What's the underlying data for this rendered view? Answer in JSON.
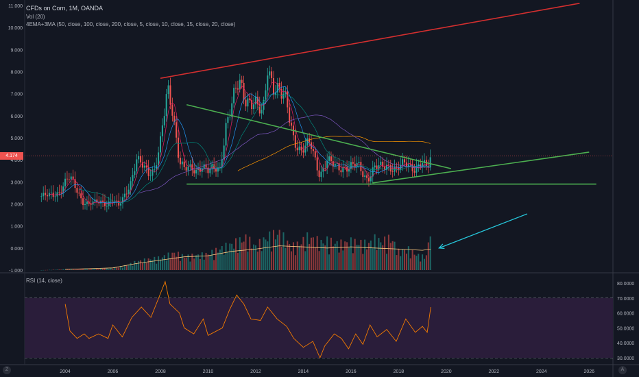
{
  "legend": {
    "symbol_title": "CFDs on Corn, 1M, OANDA",
    "volume_label": "Vol (20)",
    "ma_label": "4EMA+3MA (50, close, 100, close, 200, close, 5, close, 10, close, 15, close, 20, close)",
    "rsi_label": "RSI (14, close)"
  },
  "current_price": "4.174",
  "corner_buttons": {
    "left": "Z",
    "right": "A"
  },
  "price_axis_labels": [
    "11.000",
    "10.000",
    "9.000",
    "8.000",
    "7.000",
    "6.000",
    "5.000",
    "4.000",
    "3.000",
    "2.000",
    "1.000",
    "0.000",
    "-1.000"
  ],
  "rsi_axis_labels": [
    "80.0000",
    "70.0000",
    "60.0000",
    "50.0000",
    "40.0000",
    "30.0000"
  ],
  "time_axis_labels": [
    "2004",
    "2006",
    "2008",
    "2010",
    "2012",
    "2014",
    "2016",
    "2018",
    "2020",
    "2022",
    "2024",
    "2026"
  ],
  "colors": {
    "background": "#131722",
    "up_candle": "#26a69a",
    "down_candle": "#ef5350",
    "trendline_red": "#d32f2f",
    "trendline_green": "#4caf50",
    "annotation_arrow": "#26c6da",
    "rsi_line": "#f57c00",
    "rsi_band": "#2a1d3a"
  },
  "chart_data": {
    "type": "candlestick",
    "symbol": "CFDs on Corn",
    "interval": "1M",
    "ylim": [
      -1,
      11
    ],
    "xlim": [
      2002.3,
      2027.0
    ],
    "closes": [
      [
        2003.0,
        2.35
      ],
      [
        2003.5,
        2.4
      ],
      [
        2003.75,
        2.55
      ],
      [
        2004.0,
        3.0
      ],
      [
        2004.2,
        3.2
      ],
      [
        2004.5,
        2.6
      ],
      [
        2004.75,
        2.1
      ],
      [
        2005.0,
        2.0
      ],
      [
        2005.5,
        2.1
      ],
      [
        2005.75,
        2.0
      ],
      [
        2006.0,
        2.2
      ],
      [
        2006.25,
        1.9
      ],
      [
        2006.5,
        2.4
      ],
      [
        2006.75,
        3.0
      ],
      [
        2007.0,
        4.0
      ],
      [
        2007.25,
        3.7
      ],
      [
        2007.5,
        3.4
      ],
      [
        2007.75,
        3.6
      ],
      [
        2008.0,
        4.8
      ],
      [
        2008.3,
        7.1
      ],
      [
        2008.5,
        6.3
      ],
      [
        2008.8,
        4.0
      ],
      [
        2009.0,
        3.6
      ],
      [
        2009.5,
        3.5
      ],
      [
        2009.75,
        3.8
      ],
      [
        2010.0,
        3.5
      ],
      [
        2010.5,
        3.6
      ],
      [
        2010.75,
        5.6
      ],
      [
        2011.0,
        6.5
      ],
      [
        2011.3,
        7.5
      ],
      [
        2011.6,
        6.8
      ],
      [
        2011.9,
        6.6
      ],
      [
        2012.3,
        6.0
      ],
      [
        2012.5,
        8.3
      ],
      [
        2012.75,
        7.4
      ],
      [
        2013.0,
        7.0
      ],
      [
        2013.3,
        6.6
      ],
      [
        2013.6,
        5.0
      ],
      [
        2013.9,
        4.3
      ],
      [
        2014.3,
        4.8
      ],
      [
        2014.7,
        3.3
      ],
      [
        2015.0,
        3.9
      ],
      [
        2015.5,
        3.7
      ],
      [
        2015.9,
        3.6
      ],
      [
        2016.3,
        3.8
      ],
      [
        2016.7,
        3.1
      ],
      [
        2017.0,
        3.6
      ],
      [
        2017.5,
        3.8
      ],
      [
        2017.9,
        3.5
      ],
      [
        2018.3,
        3.9
      ],
      [
        2018.7,
        3.6
      ],
      [
        2019.0,
        3.8
      ],
      [
        2019.2,
        3.6
      ],
      [
        2019.35,
        4.17
      ]
    ],
    "volume": [
      [
        2003.0,
        0.0
      ],
      [
        2004.0,
        0.03
      ],
      [
        2005.0,
        0.05
      ],
      [
        2006.0,
        0.08
      ],
      [
        2006.6,
        0.2
      ],
      [
        2007.0,
        0.35
      ],
      [
        2007.6,
        0.45
      ],
      [
        2008.0,
        0.5
      ],
      [
        2008.6,
        0.7
      ],
      [
        2009.0,
        0.55
      ],
      [
        2009.6,
        0.6
      ],
      [
        2010.0,
        0.65
      ],
      [
        2010.6,
        0.9
      ],
      [
        2011.0,
        1.05
      ],
      [
        2011.6,
        1.3
      ],
      [
        2012.0,
        0.95
      ],
      [
        2012.5,
        1.35
      ],
      [
        2013.0,
        1.5
      ],
      [
        2013.5,
        0.95
      ],
      [
        2013.8,
        1.05
      ],
      [
        2014.2,
        1.35
      ],
      [
        2014.8,
        1.1
      ],
      [
        2015.0,
        1.2
      ],
      [
        2015.5,
        1.05
      ],
      [
        2016.0,
        1.15
      ],
      [
        2016.4,
        1.1
      ],
      [
        2016.7,
        1.05
      ],
      [
        2017.0,
        1.25
      ],
      [
        2017.3,
        1.15
      ],
      [
        2017.7,
        1.3
      ],
      [
        2018.0,
        0.75
      ],
      [
        2018.4,
        0.85
      ],
      [
        2018.8,
        0.6
      ],
      [
        2019.0,
        0.55
      ],
      [
        2019.2,
        0.6
      ],
      [
        2019.35,
        2.0
      ]
    ],
    "volume_ma": [
      [
        2004.0,
        0.03
      ],
      [
        2006.0,
        0.1
      ],
      [
        2007.0,
        0.3
      ],
      [
        2008.0,
        0.45
      ],
      [
        2009.0,
        0.6
      ],
      [
        2010.0,
        0.65
      ],
      [
        2011.0,
        0.85
      ],
      [
        2012.0,
        0.95
      ],
      [
        2013.0,
        1.1
      ],
      [
        2014.0,
        1.05
      ],
      [
        2015.0,
        1.0
      ],
      [
        2016.0,
        1.05
      ],
      [
        2017.0,
        1.0
      ],
      [
        2018.0,
        0.95
      ],
      [
        2019.0,
        0.9
      ],
      [
        2019.35,
        0.95
      ]
    ],
    "rsi": [
      [
        2004.0,
        66
      ],
      [
        2004.2,
        48
      ],
      [
        2004.5,
        43
      ],
      [
        2004.8,
        46
      ],
      [
        2005.0,
        43
      ],
      [
        2005.4,
        46
      ],
      [
        2005.8,
        43
      ],
      [
        2006.0,
        52
      ],
      [
        2006.4,
        44
      ],
      [
        2006.8,
        57
      ],
      [
        2007.2,
        64
      ],
      [
        2007.6,
        57
      ],
      [
        2008.0,
        73
      ],
      [
        2008.2,
        81
      ],
      [
        2008.4,
        66
      ],
      [
        2008.8,
        60
      ],
      [
        2009.0,
        50
      ],
      [
        2009.4,
        46
      ],
      [
        2009.8,
        56
      ],
      [
        2010.0,
        45
      ],
      [
        2010.6,
        50
      ],
      [
        2010.9,
        62
      ],
      [
        2011.2,
        72
      ],
      [
        2011.5,
        66
      ],
      [
        2011.8,
        56
      ],
      [
        2012.2,
        55
      ],
      [
        2012.5,
        64
      ],
      [
        2012.9,
        56
      ],
      [
        2013.3,
        51
      ],
      [
        2013.6,
        43
      ],
      [
        2014.0,
        37
      ],
      [
        2014.4,
        41
      ],
      [
        2014.7,
        30
      ],
      [
        2014.9,
        38
      ],
      [
        2015.3,
        46
      ],
      [
        2015.6,
        43
      ],
      [
        2015.9,
        36
      ],
      [
        2016.2,
        46
      ],
      [
        2016.5,
        39
      ],
      [
        2016.8,
        52
      ],
      [
        2017.1,
        44
      ],
      [
        2017.5,
        49
      ],
      [
        2017.9,
        41
      ],
      [
        2018.3,
        56
      ],
      [
        2018.7,
        47
      ],
      [
        2019.0,
        51
      ],
      [
        2019.2,
        47
      ],
      [
        2019.35,
        64
      ]
    ],
    "trendlines": [
      {
        "name": "red-resistance",
        "from": [
          2008.0,
          7.7
        ],
        "to": [
          2025.6,
          11.1
        ]
      },
      {
        "name": "green-descending",
        "from": [
          2009.1,
          6.5
        ],
        "to": [
          2020.2,
          3.6
        ]
      },
      {
        "name": "green-horizontal-support",
        "from": [
          2009.1,
          2.9
        ],
        "to": [
          2026.3,
          2.9
        ]
      },
      {
        "name": "green-ascending",
        "from": [
          2016.9,
          2.95
        ],
        "to": [
          2026.0,
          4.35
        ]
      }
    ],
    "annotation_arrow": {
      "from": [
        2023.4,
        1.55
      ],
      "to": [
        2019.7,
        0.0
      ]
    },
    "rsi_levels": [
      70,
      30
    ]
  }
}
